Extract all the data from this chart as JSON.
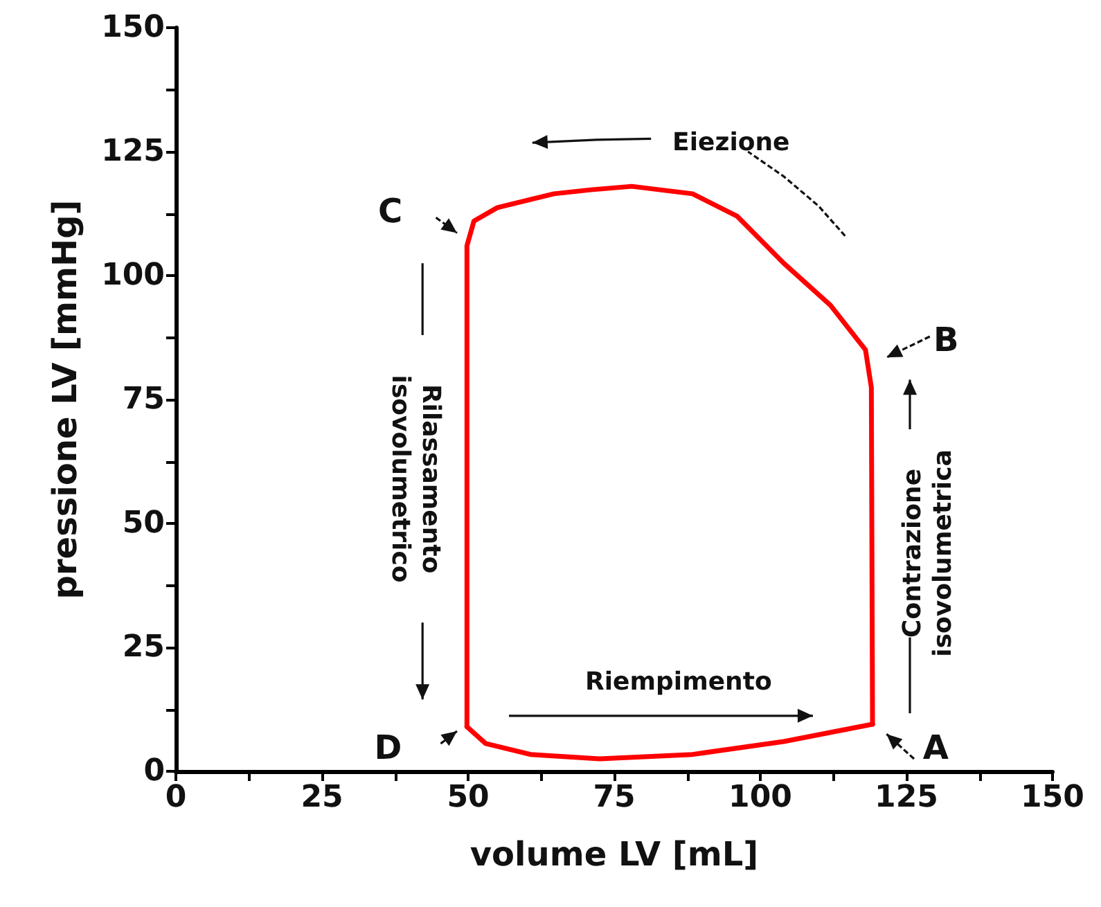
{
  "chart_data": {
    "type": "line",
    "xlabel": "volume LV [mL]",
    "ylabel": "pressione LV [mmHg]",
    "xlim": [
      0,
      150
    ],
    "ylim": [
      0,
      150
    ],
    "xticks": [
      0,
      {
        "value": 12.5,
        "label": null
      },
      25,
      {
        "value": 37.5,
        "label": null
      },
      50,
      {
        "value": 62.5,
        "label": null
      },
      75,
      {
        "value": 87.5,
        "label": null
      },
      100,
      {
        "value": 112.5,
        "label": null
      },
      125,
      {
        "value": 137.5,
        "label": null
      },
      150
    ],
    "yticks": [
      0,
      {
        "value": 12.5,
        "label": null
      },
      25,
      {
        "value": 37.5,
        "label": null
      },
      50,
      {
        "value": 62.5,
        "label": null
      },
      75,
      {
        "value": 87.5,
        "label": null
      },
      100,
      {
        "value": 112.5,
        "label": null
      },
      125,
      {
        "value": 137.5,
        "label": null
      },
      150
    ],
    "grid": false,
    "marker": "none",
    "line_style": "solid",
    "series": [
      {
        "color": "#ff0000",
        "x": [
          119.2,
          119,
          118,
          112,
          104,
          96,
          88.4,
          78,
          71,
          64.7,
          55,
          51,
          49.8,
          49.8
        ],
        "values": [
          9.5,
          77.4,
          85,
          94,
          102.5,
          112,
          116.5,
          118,
          117.3,
          116.5,
          113.7,
          111,
          106,
          9
        ]
      },
      {
        "color": "#ff0000",
        "x": [
          49.8,
          53,
          60.7,
          72.5,
          88.4,
          104,
          119.2
        ],
        "values": [
          9,
          5.6,
          3.4,
          2.5,
          3.4,
          6,
          9.5
        ]
      }
    ],
    "annotations": [
      "A",
      "B",
      "C",
      "D",
      "Eiezione",
      "Riempimento",
      "Rilassamento\nisovolumetrico",
      "Contrazione\nisovolumetrica"
    ]
  }
}
